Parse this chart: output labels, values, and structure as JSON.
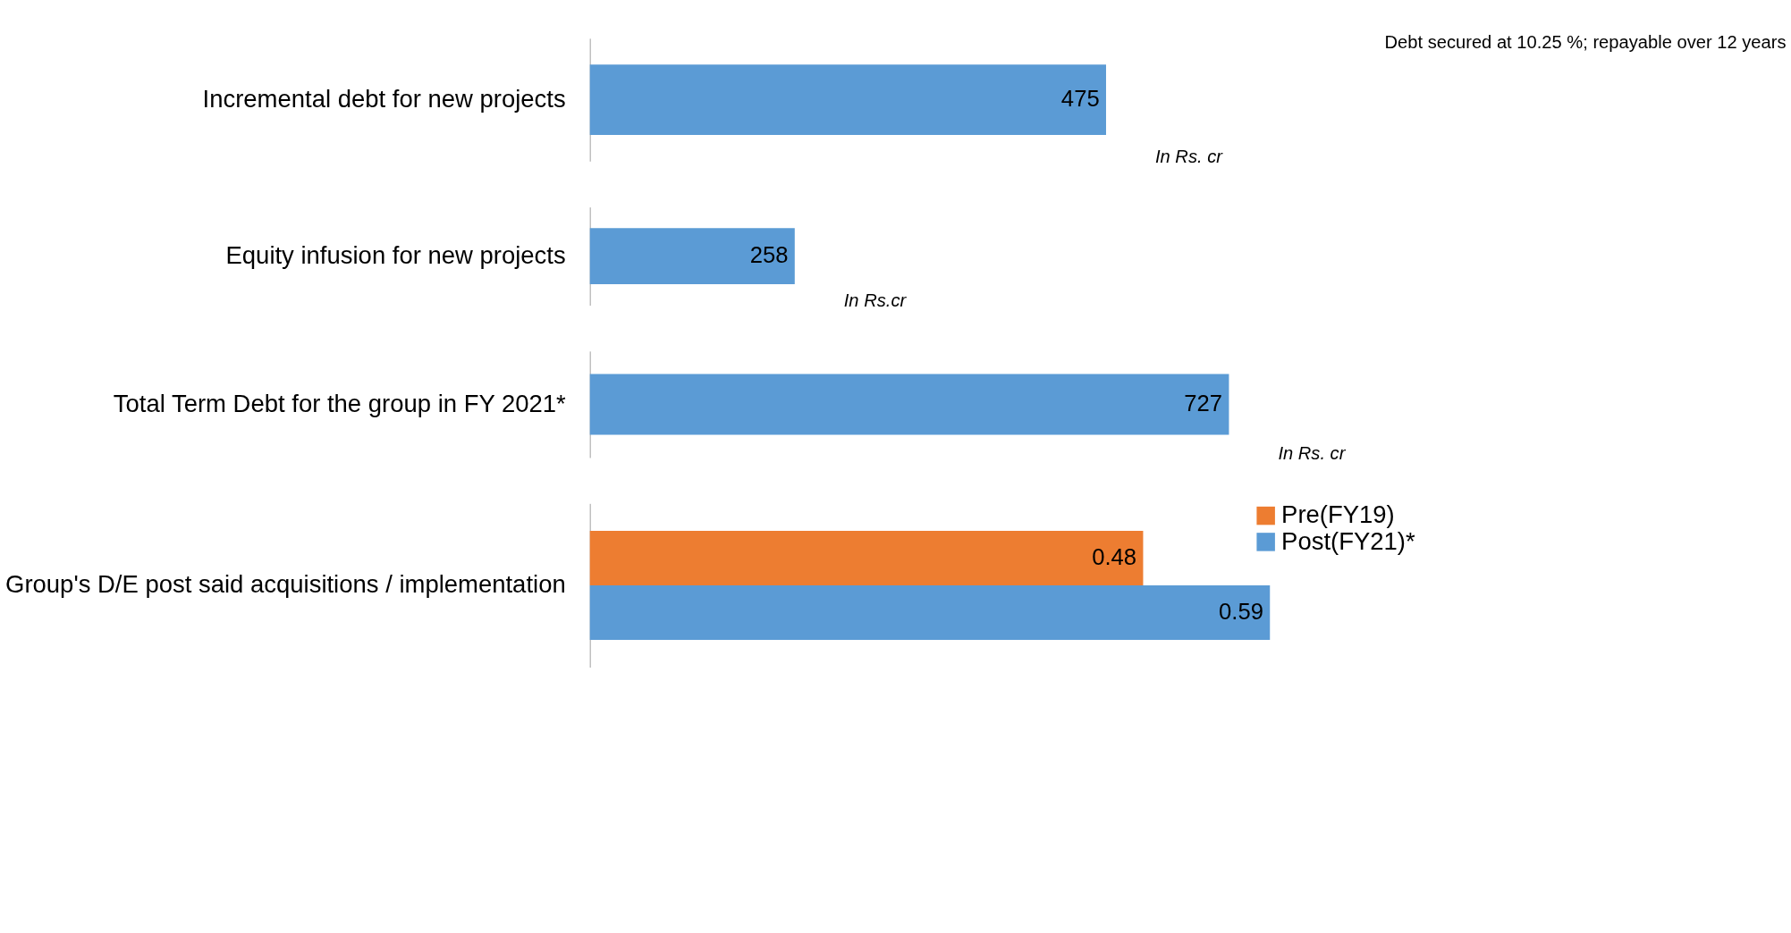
{
  "chart_data": [
    {
      "type": "bar",
      "orientation": "horizontal",
      "categories": [
        "Incremental debt  for new projects"
      ],
      "values": [
        475
      ],
      "color": "#5b9bd5",
      "data_labels": true,
      "annotations": [
        "Debt secured at 10.25 %; repayable over 12 years",
        "In Rs. cr"
      ]
    },
    {
      "type": "bar",
      "orientation": "horizontal",
      "categories": [
        "Equity infusion for new projects"
      ],
      "values": [
        258
      ],
      "color": "#5b9bd5",
      "data_labels": true,
      "annotations": [
        "In Rs.cr"
      ]
    },
    {
      "type": "bar",
      "orientation": "horizontal",
      "categories": [
        "Total Term Debt for the group in FY 2021*"
      ],
      "values": [
        727
      ],
      "color": "#5b9bd5",
      "data_labels": true,
      "annotations": [
        "In Rs. cr"
      ]
    },
    {
      "type": "bar",
      "orientation": "horizontal",
      "categories": [
        "Group's D/E post said acquisitions / implementation"
      ],
      "legend": "right",
      "data_labels": true,
      "series": [
        {
          "name": "Pre(FY19)",
          "color": "#ed7d31",
          "values": [
            0.48
          ]
        },
        {
          "name": "Post(FY21)*",
          "color": "#5b9bd5",
          "values": [
            0.59
          ]
        }
      ]
    }
  ]
}
